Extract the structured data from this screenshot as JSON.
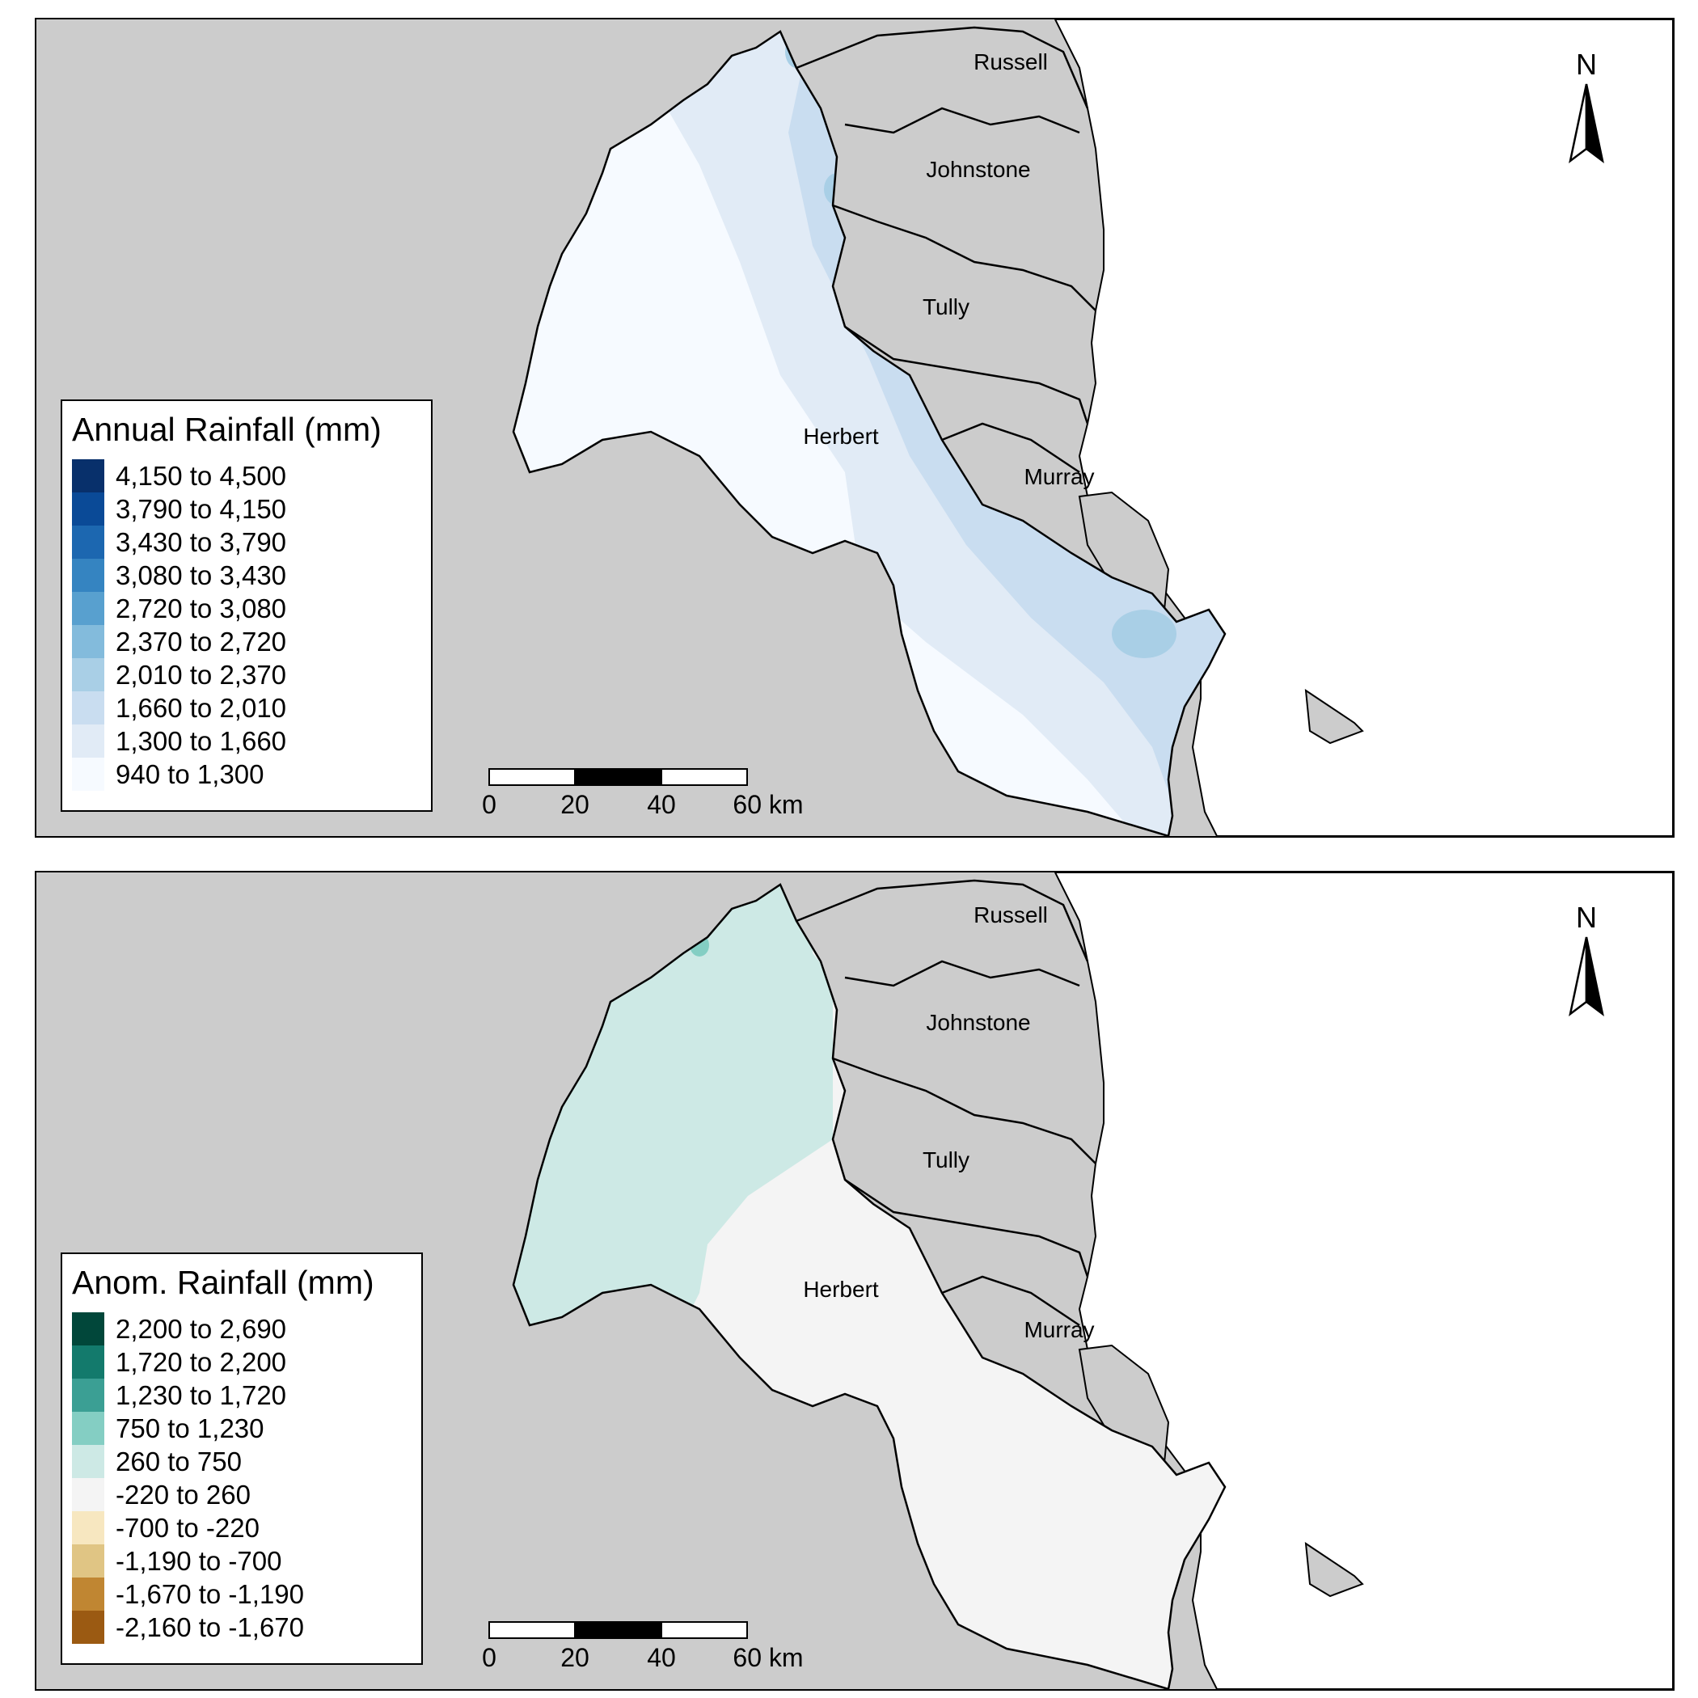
{
  "panels": [
    {
      "id": "top",
      "legend": {
        "title": "Annual Rainfall (mm)",
        "items": [
          {
            "label": "4,150 to 4,500",
            "color": "#08306b"
          },
          {
            "label": "3,790 to 4,150",
            "color": "#0a4a97"
          },
          {
            "label": "3,430 to 3,790",
            "color": "#1c67b0"
          },
          {
            "label": "3,080 to 3,430",
            "color": "#3584c1"
          },
          {
            "label": "2,720 to 3,080",
            "color": "#58a0cf"
          },
          {
            "label": "2,370 to 2,720",
            "color": "#83bbdc"
          },
          {
            "label": "2,010 to 2,370",
            "color": "#a9cfe6"
          },
          {
            "label": "1,660 to 2,010",
            "color": "#c9ddf0"
          },
          {
            "label": "1,300 to 1,660",
            "color": "#e1ebf6"
          },
          {
            "label": "940 to 1,300",
            "color": "#f6faff"
          }
        ]
      }
    },
    {
      "id": "bottom",
      "legend": {
        "title": "Anom. Rainfall (mm)",
        "items": [
          {
            "label": "2,200 to 2,690",
            "color": "#01473a"
          },
          {
            "label": "1,720 to 2,200",
            "color": "#137a6c"
          },
          {
            "label": "1,230 to 1,720",
            "color": "#3b9f94"
          },
          {
            "label": "750 to 1,230",
            "color": "#84cec3"
          },
          {
            "label": "260 to 750",
            "color": "#cde9e5"
          },
          {
            "label": "-220 to 260",
            "color": "#f4f4f4"
          },
          {
            "label": "-700 to -220",
            "color": "#f7e7c0"
          },
          {
            "label": "-1,190 to -700",
            "color": "#e0c584"
          },
          {
            "label": "-1,670 to -1,190",
            "color": "#c08632"
          },
          {
            "label": "-2,160 to -1,670",
            "color": "#9b5a12"
          }
        ]
      }
    }
  ],
  "map": {
    "land_color": "#cccccc",
    "sea_color": "#ffffff",
    "north_arrow": {
      "label": "N",
      "icon": "north-arrow-icon"
    },
    "scale_bar": {
      "ticks": [
        "0",
        "20",
        "40",
        "60 km"
      ]
    },
    "catchments": [
      "Russell",
      "Johnstone",
      "Tully",
      "Herbert",
      "Murray"
    ]
  }
}
